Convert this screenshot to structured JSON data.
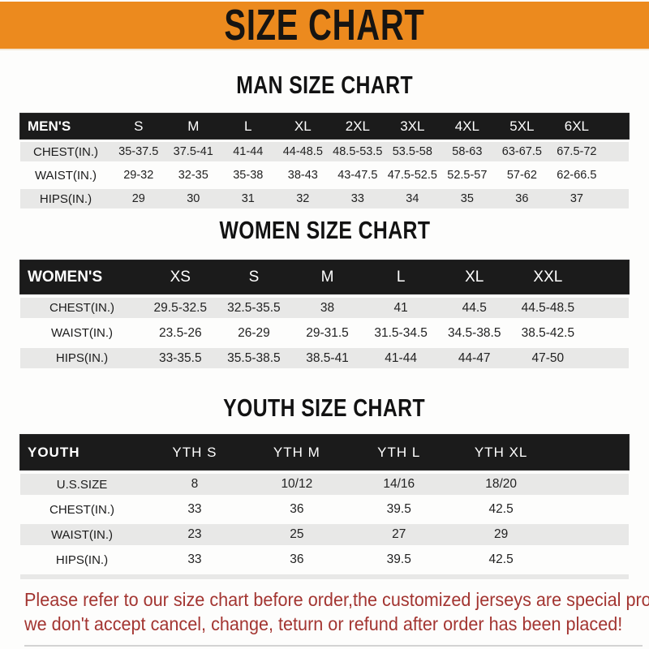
{
  "banner": {
    "title": "SIZE CHART"
  },
  "colors": {
    "accent": "#EC8A1E",
    "header_bar": "#1B1B1B",
    "row_stripe": "#E8E8E7",
    "notice_red": "#A33531"
  },
  "sections": [
    {
      "heading": "MAN SIZE CHART",
      "table": {
        "header_label": "MEN'S",
        "columns": [
          "S",
          "M",
          "L",
          "XL",
          "2XL",
          "3XL",
          "4XL",
          "5XL",
          "6XL"
        ],
        "rows": [
          {
            "label": "CHEST(IN.)",
            "values": [
              "35-37.5",
              "37.5-41",
              "41-44",
              "44-48.5",
              "48.5-53.5",
              "53.5-58",
              "58-63",
              "63-67.5",
              "67.5-72"
            ]
          },
          {
            "label": "WAIST(IN.)",
            "values": [
              "29-32",
              "32-35",
              "35-38",
              "38-43",
              "43-47.5",
              "47.5-52.5",
              "52.5-57",
              "57-62",
              "62-66.5"
            ]
          },
          {
            "label": "HIPS(IN.)",
            "values": [
              "29",
              "30",
              "31",
              "32",
              "33",
              "34",
              "35",
              "36",
              "37"
            ]
          }
        ]
      }
    },
    {
      "heading": "WOMEN SIZE CHART",
      "table": {
        "header_label": "WOMEN'S",
        "columns": [
          "XS",
          "S",
          "M",
          "L",
          "XL",
          "XXL"
        ],
        "rows": [
          {
            "label": "CHEST(IN.)",
            "values": [
              "29.5-32.5",
              "32.5-35.5",
              "38",
              "41",
              "44.5",
              "44.5-48.5"
            ]
          },
          {
            "label": "WAIST(IN.)",
            "values": [
              "23.5-26",
              "26-29",
              "29-31.5",
              "31.5-34.5",
              "34.5-38.5",
              "38.5-42.5"
            ]
          },
          {
            "label": "HIPS(IN.)",
            "values": [
              "33-35.5",
              "35.5-38.5",
              "38.5-41",
              "41-44",
              "44-47",
              "47-50"
            ]
          }
        ]
      }
    },
    {
      "heading": "YOUTH SIZE CHART",
      "table": {
        "header_label": "YOUTH",
        "columns": [
          "YTH S",
          "YTH M",
          "YTH L",
          "YTH XL"
        ],
        "rows": [
          {
            "label": "U.S.SIZE",
            "values": [
              "8",
              "10/12",
              "14/16",
              "18/20"
            ]
          },
          {
            "label": "CHEST(IN.)",
            "values": [
              "33",
              "36",
              "39.5",
              "42.5"
            ]
          },
          {
            "label": "WAIST(IN.)",
            "values": [
              "23",
              "25",
              "27",
              "29"
            ]
          },
          {
            "label": "HIPS(IN.)",
            "values": [
              "33",
              "36",
              "39.5",
              "42.5"
            ]
          }
        ]
      }
    }
  ],
  "footer": {
    "line1": "Please refer to our size chart before order,the customized jerseys are special products,",
    "line2": "we don't accept cancel, change, teturn or refund after order has been placed!"
  }
}
